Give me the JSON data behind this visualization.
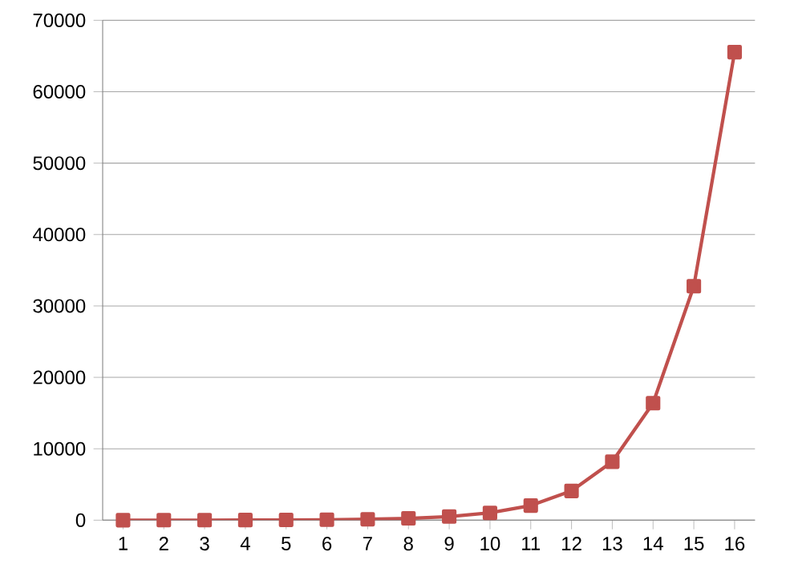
{
  "chart_data": {
    "type": "line",
    "categories": [
      "1",
      "2",
      "3",
      "4",
      "5",
      "6",
      "7",
      "8",
      "9",
      "10",
      "11",
      "12",
      "13",
      "14",
      "15",
      "16"
    ],
    "series": [
      {
        "color": "#c0504d",
        "values": [
          2,
          4,
          8,
          16,
          32,
          64,
          128,
          256,
          512,
          1024,
          2048,
          4096,
          8192,
          16384,
          32768,
          65536
        ]
      }
    ],
    "ylim": [
      0,
      70000
    ],
    "yticks": [
      0,
      10000,
      20000,
      30000,
      40000,
      50000,
      60000,
      70000
    ],
    "grid": "y",
    "marker": "square",
    "line_style": "solid"
  }
}
